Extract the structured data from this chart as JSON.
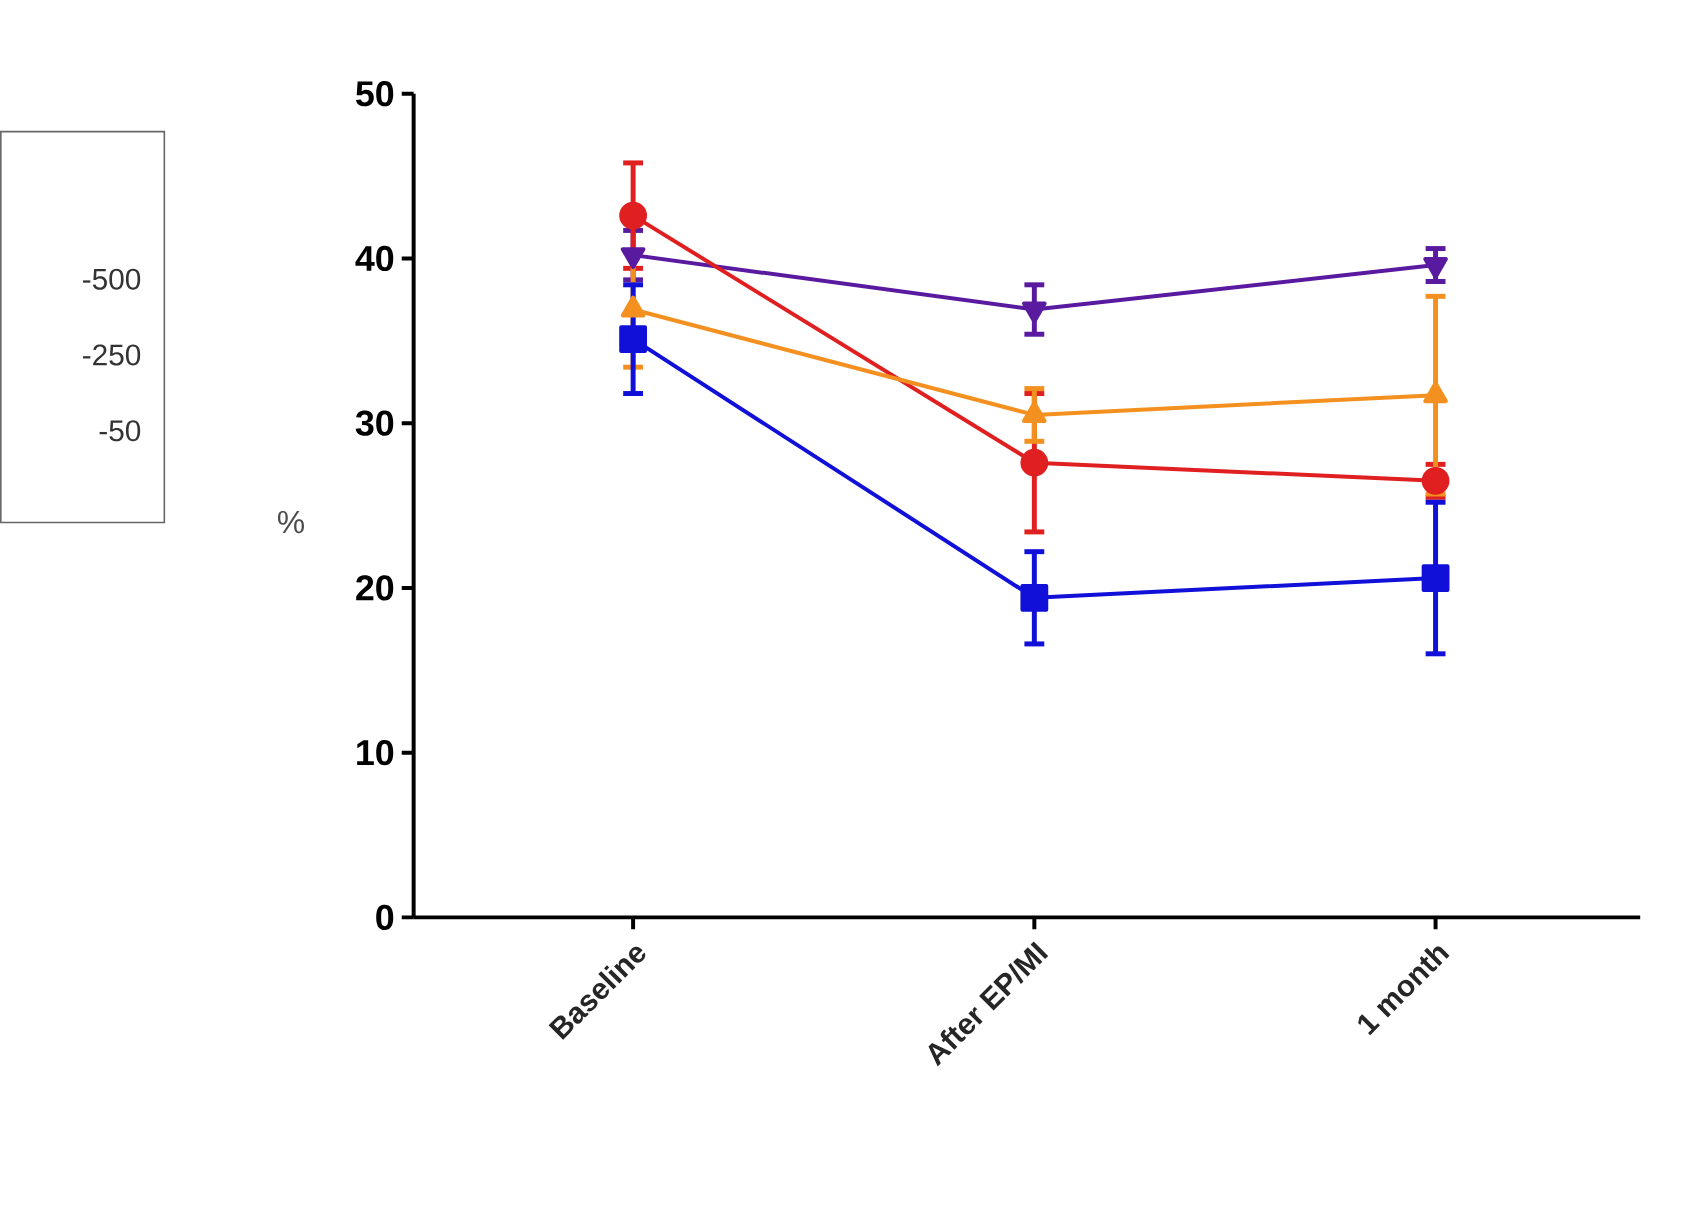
{
  "chart_data": {
    "type": "line",
    "ylabel": "%",
    "categories": [
      "Baseline",
      "After EP/MI",
      "1 month"
    ],
    "series": [
      {
        "color": "#5a1aa0",
        "marker": "triangle-down",
        "values": [
          40.2,
          36.9,
          39.6
        ],
        "errors": [
          1.5,
          1.5,
          1
        ]
      },
      {
        "color": "#e02020",
        "marker": "circle",
        "values": [
          42.6,
          27.6,
          26.5
        ],
        "errors": [
          3.2,
          4.2,
          1
        ]
      },
      {
        "color": "#f39020",
        "marker": "triangle",
        "values": [
          36.9,
          30.5,
          31.7
        ],
        "errors": [
          3.5,
          1.6,
          6
        ]
      },
      {
        "color": "#1010d8",
        "marker": "square",
        "values": [
          35.1,
          19.4,
          20.6
        ],
        "errors": [
          3.3,
          2.8,
          4.6
        ]
      }
    ],
    "ylim": [
      0,
      50
    ],
    "yticks": [
      0,
      10,
      20,
      30,
      40,
      50
    ],
    "grid": false,
    "annotations": [
      "-500",
      "-250",
      "-50"
    ]
  }
}
